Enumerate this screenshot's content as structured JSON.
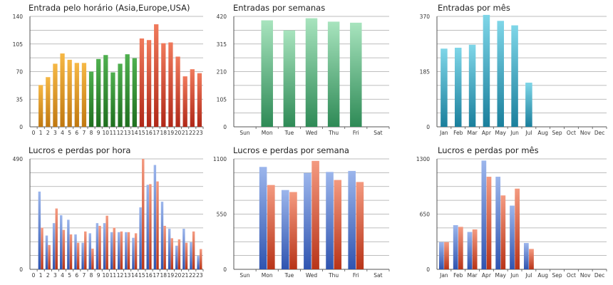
{
  "colors": {
    "orange": "#f0a020",
    "green": "#3a9a3a",
    "red": "#e05535",
    "mint": "#6ecb8e",
    "teal": "#3ab2cc",
    "blue": "#5a80d0",
    "salmon": "#e86848",
    "grid": "#a8a8a8",
    "axis": "#555555"
  },
  "chart_data": [
    {
      "type": "bar",
      "title": "Entrada pelo horário (Asia,Europe,USA)",
      "categories": [
        "0",
        "1",
        "2",
        "3",
        "4",
        "5",
        "6",
        "7",
        "8",
        "9",
        "10",
        "11",
        "12",
        "13",
        "14",
        "15",
        "16",
        "17",
        "18",
        "19",
        "20",
        "21",
        "22",
        "23"
      ],
      "values": [
        0,
        53,
        63,
        80,
        93,
        85,
        81,
        81,
        70,
        86,
        91,
        69,
        80,
        92,
        87,
        112,
        110,
        130,
        106,
        107,
        89,
        64,
        73,
        68
      ],
      "bar_colors": [
        "orange",
        "orange",
        "orange",
        "orange",
        "orange",
        "orange",
        "orange",
        "orange",
        "green",
        "green",
        "green",
        "green",
        "green",
        "green",
        "green",
        "red",
        "red",
        "red",
        "red",
        "red",
        "red",
        "red",
        "red",
        "red"
      ],
      "yticks": [
        "0",
        "35",
        "70",
        "105",
        "140"
      ],
      "ylim": [
        0,
        140
      ],
      "xlabel": "",
      "ylabel": ""
    },
    {
      "type": "bar",
      "title": "Entradas por semanas",
      "categories": [
        "Sun",
        "Mon",
        "Tue",
        "Wed",
        "Thu",
        "Fri",
        "Sat"
      ],
      "values": [
        0,
        405,
        367,
        413,
        400,
        396,
        0
      ],
      "yticks": [
        "0",
        "105",
        "210",
        "315",
        "420"
      ],
      "ylim": [
        0,
        420
      ],
      "xlabel": "",
      "ylabel": ""
    },
    {
      "type": "bar",
      "title": "Entradas por mês",
      "categories": [
        "Jan",
        "Feb",
        "Mar",
        "Apr",
        "May",
        "Jun",
        "Jul",
        "Aug",
        "Sep",
        "Oct",
        "Nov",
        "Dec"
      ],
      "values": [
        262,
        265,
        275,
        375,
        355,
        340,
        148,
        0,
        0,
        0,
        0,
        0
      ],
      "yticks": [
        "0",
        "185",
        "370"
      ],
      "ylim": [
        0,
        370
      ],
      "xlabel": "",
      "ylabel": ""
    },
    {
      "type": "bar",
      "title": "Lucros e perdas por hora",
      "categories": [
        "0",
        "1",
        "2",
        "3",
        "4",
        "5",
        "6",
        "7",
        "8",
        "9",
        "10",
        "11",
        "12",
        "13",
        "14",
        "15",
        "16",
        "17",
        "18",
        "19",
        "20",
        "21",
        "22",
        "23"
      ],
      "series": [
        {
          "name": "Lucros",
          "values": [
            0,
            345,
            150,
            205,
            240,
            220,
            155,
            118,
            160,
            205,
            205,
            165,
            165,
            165,
            140,
            275,
            375,
            463,
            300,
            180,
            105,
            180,
            120,
            60
          ]
        },
        {
          "name": "Perdas",
          "values": [
            0,
            185,
            108,
            270,
            175,
            155,
            118,
            168,
            92,
            193,
            238,
            185,
            168,
            165,
            160,
            490,
            378,
            390,
            193,
            138,
            133,
            118,
            168,
            90
          ]
        }
      ],
      "yticks": [
        "0",
        "490"
      ],
      "ylim": [
        0,
        490
      ],
      "xlabel": "",
      "ylabel": ""
    },
    {
      "type": "bar",
      "title": "Lucros e perdas por semana",
      "categories": [
        "Sun",
        "Mon",
        "Tue",
        "Wed",
        "Thu",
        "Fri",
        "Sat"
      ],
      "series": [
        {
          "name": "Lucros",
          "values": [
            0,
            1020,
            790,
            960,
            970,
            980,
            0
          ]
        },
        {
          "name": "Perdas",
          "values": [
            0,
            840,
            770,
            1080,
            890,
            870,
            0
          ]
        }
      ],
      "yticks": [
        "0",
        "550",
        "1100"
      ],
      "ylim": [
        0,
        1100
      ],
      "xlabel": "",
      "ylabel": ""
    },
    {
      "type": "bar",
      "title": "Lucros e perdas por mês",
      "categories": [
        "Jan",
        "Feb",
        "Mar",
        "Apr",
        "May",
        "Jun",
        "Jul",
        "Aug",
        "Sep",
        "Oct",
        "Nov",
        "Dec"
      ],
      "series": [
        {
          "name": "Lucros",
          "values": [
            320,
            520,
            440,
            1280,
            1090,
            750,
            310,
            0,
            0,
            0,
            0,
            0
          ]
        },
        {
          "name": "Perdas",
          "values": [
            320,
            500,
            470,
            1090,
            870,
            950,
            240,
            0,
            0,
            0,
            0,
            0
          ]
        }
      ],
      "yticks": [
        "0",
        "650",
        "1300"
      ],
      "ylim": [
        0,
        1300
      ],
      "xlabel": "",
      "ylabel": ""
    }
  ]
}
